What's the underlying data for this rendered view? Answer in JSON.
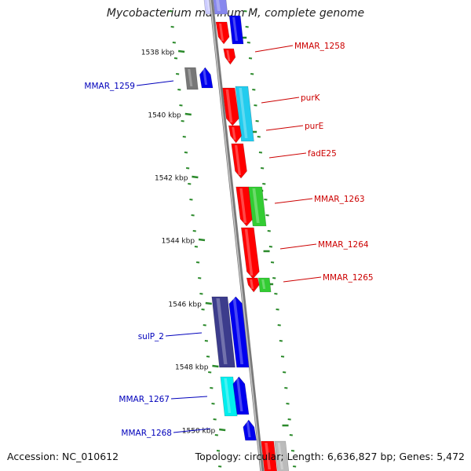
{
  "title": "Mycobacterium marinum M, complete genome",
  "accession": "Accession: NC_010612",
  "summary": "Topology: circular; Length: 6,636,827 bp; Genes: 5,472",
  "colors": {
    "backbone": "#8a8a8a",
    "tick": "#2b8a2b",
    "forward_label": "#cc0000",
    "reverse_label": "#0000bb",
    "red": "#ff0000",
    "blue": "#0000ee",
    "navy": "#3c3c8c",
    "cyan": "#22ccee",
    "aqua": "#00eeee",
    "green": "#33cc33",
    "gray": "#777777"
  },
  "tick_labels": [
    "1538 kbp",
    "1540 kbp",
    "1542 kbp",
    "1544 kbp",
    "1546 kbp",
    "1548 kbp",
    "1550 kbp"
  ],
  "genes": [
    {
      "label": "MMAR_1258",
      "strand": "forward",
      "color": "red"
    },
    {
      "label": "MMAR_1259",
      "strand": "reverse",
      "color": "gray"
    },
    {
      "label": "purK",
      "strand": "forward",
      "color": "cyan"
    },
    {
      "label": "purE",
      "strand": "forward",
      "color": "red"
    },
    {
      "label": "fadE25",
      "strand": "forward",
      "color": "red"
    },
    {
      "label": "MMAR_1263",
      "strand": "forward",
      "color": "green"
    },
    {
      "label": "MMAR_1264",
      "strand": "forward",
      "color": "red"
    },
    {
      "label": "MMAR_1265",
      "strand": "forward",
      "color": "green"
    },
    {
      "label": "sulP_2",
      "strand": "reverse",
      "color": "navy"
    },
    {
      "label": "MMAR_1267",
      "strand": "reverse",
      "color": "aqua"
    },
    {
      "label": "MMAR_1268",
      "strand": "reverse",
      "color": "blue"
    }
  ]
}
